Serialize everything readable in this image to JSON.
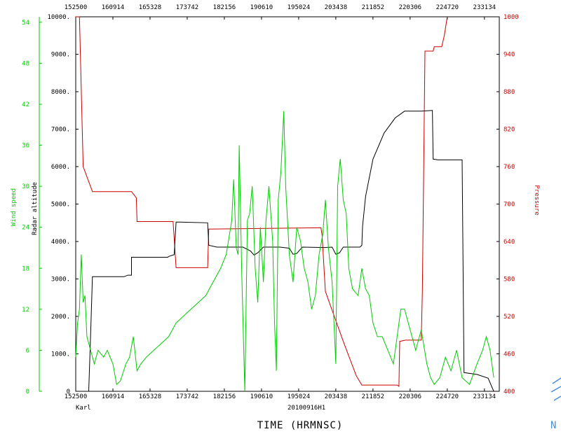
{
  "chart_data": {
    "type": "line",
    "xlabel": "TIME (HRMNSC)",
    "date_label": "20100916H1",
    "storm_name": "Karl",
    "x_ticks": [
      "152500",
      "160914",
      "165328",
      "173742",
      "182156",
      "190610",
      "195024",
      "203438",
      "211852",
      "220306",
      "224720",
      "233134"
    ],
    "axes": {
      "wind": {
        "label": "Wind speed",
        "ticks": [
          "0",
          "6",
          "12",
          "18",
          "24",
          "30",
          "36",
          "42",
          "48",
          "54"
        ],
        "ylim": [
          0,
          54.8
        ],
        "color": "#00cc00"
      },
      "altitude": {
        "label": "Radar altitude",
        "ticks": [
          "0",
          "1000.",
          "2000.",
          "3000.",
          "4000.",
          "5000.",
          "6000.",
          "7000.",
          "8000.",
          "9000.",
          "10000."
        ],
        "ylim": [
          0,
          10000
        ],
        "color": "#000000"
      },
      "pressure": {
        "label": "Pressure",
        "ticks": [
          "400",
          "460",
          "520",
          "580",
          "640",
          "700",
          "760",
          "820",
          "880",
          "940",
          "1000"
        ],
        "ylim": [
          400,
          1000
        ],
        "color": "#cc0000"
      }
    },
    "series": [
      {
        "axis": "pressure",
        "color": "#cc0000",
        "points": [
          [
            0,
            1005
          ],
          [
            0.01,
            1000
          ],
          [
            0.02,
            760
          ],
          [
            0.045,
            720
          ],
          [
            0.15,
            720
          ],
          [
            0.163,
            710
          ],
          [
            0.165,
            672
          ],
          [
            0.262,
            672
          ],
          [
            0.265,
            645
          ],
          [
            0.27,
            598
          ],
          [
            0.355,
            598
          ],
          [
            0.358,
            660
          ],
          [
            0.36,
            660
          ],
          [
            0.66,
            662
          ],
          [
            0.663,
            650
          ],
          [
            0.672,
            560
          ],
          [
            0.72,
            480
          ],
          [
            0.755,
            425
          ],
          [
            0.77,
            410
          ],
          [
            0.8,
            410
          ],
          [
            0.85,
            410
          ],
          [
            0.865,
            410
          ],
          [
            0.87,
            408
          ],
          [
            0.872,
            480
          ],
          [
            0.888,
            482
          ],
          [
            0.93,
            482
          ],
          [
            0.933,
            560
          ],
          [
            0.94,
            945
          ],
          [
            0.962,
            945
          ],
          [
            0.965,
            952
          ],
          [
            0.985,
            952
          ],
          [
            0.992,
            970
          ],
          [
            1.0,
            1000
          ]
        ]
      },
      {
        "axis": "altitude",
        "color": "#000000",
        "points": [
          [
            0.02,
            0
          ],
          [
            0.035,
            0
          ],
          [
            0.04,
            1500
          ],
          [
            0.045,
            3060
          ],
          [
            0.06,
            3060
          ],
          [
            0.13,
            3060
          ],
          [
            0.14,
            3100
          ],
          [
            0.15,
            3100
          ],
          [
            0.15,
            3580
          ],
          [
            0.24,
            3580
          ],
          [
            0.248,
            3580
          ],
          [
            0.25,
            3600
          ],
          [
            0.265,
            3650
          ],
          [
            0.27,
            4520
          ],
          [
            0.28,
            4520
          ],
          [
            0.355,
            4500
          ],
          [
            0.358,
            3900
          ],
          [
            0.38,
            3850
          ],
          [
            0.45,
            3850
          ],
          [
            0.47,
            3750
          ],
          [
            0.48,
            3640
          ],
          [
            0.49,
            3700
          ],
          [
            0.505,
            3850
          ],
          [
            0.55,
            3850
          ],
          [
            0.575,
            3820
          ],
          [
            0.585,
            3660
          ],
          [
            0.595,
            3680
          ],
          [
            0.61,
            3850
          ],
          [
            0.67,
            3840
          ],
          [
            0.69,
            3850
          ],
          [
            0.7,
            3660
          ],
          [
            0.71,
            3700
          ],
          [
            0.72,
            3850
          ],
          [
            0.765,
            3850
          ],
          [
            0.77,
            3900
          ],
          [
            0.772,
            4400
          ],
          [
            0.78,
            5200
          ],
          [
            0.8,
            6200
          ],
          [
            0.83,
            6900
          ],
          [
            0.86,
            7300
          ],
          [
            0.885,
            7480
          ],
          [
            0.93,
            7480
          ],
          [
            0.96,
            7500
          ],
          [
            0.962,
            6200
          ],
          [
            0.975,
            6180
          ],
          [
            1.04,
            6180
          ],
          [
            1.045,
            500
          ],
          [
            1.08,
            450
          ],
          [
            1.11,
            350
          ],
          [
            1.125,
            0
          ]
        ]
      },
      {
        "axis": "wind",
        "color": "#00cc00",
        "points": [
          [
            0.0,
            5
          ],
          [
            0.005,
            10
          ],
          [
            0.01,
            12
          ],
          [
            0.015,
            20
          ],
          [
            0.02,
            13
          ],
          [
            0.025,
            14
          ],
          [
            0.03,
            8
          ],
          [
            0.04,
            6
          ],
          [
            0.05,
            4
          ],
          [
            0.06,
            6
          ],
          [
            0.075,
            5
          ],
          [
            0.085,
            6
          ],
          [
            0.1,
            4
          ],
          [
            0.11,
            1
          ],
          [
            0.12,
            1.5
          ],
          [
            0.135,
            4
          ],
          [
            0.145,
            5
          ],
          [
            0.155,
            8
          ],
          [
            0.165,
            3
          ],
          [
            0.175,
            4
          ],
          [
            0.19,
            5
          ],
          [
            0.21,
            6
          ],
          [
            0.23,
            7
          ],
          [
            0.25,
            8
          ],
          [
            0.27,
            10
          ],
          [
            0.29,
            11
          ],
          [
            0.31,
            12
          ],
          [
            0.33,
            13
          ],
          [
            0.35,
            14
          ],
          [
            0.37,
            16
          ],
          [
            0.39,
            18
          ],
          [
            0.405,
            20
          ],
          [
            0.42,
            25
          ],
          [
            0.425,
            31
          ],
          [
            0.432,
            21
          ],
          [
            0.437,
            20
          ],
          [
            0.44,
            36
          ],
          [
            0.447,
            17
          ],
          [
            0.455,
            0
          ],
          [
            0.462,
            25
          ],
          [
            0.468,
            26
          ],
          [
            0.475,
            30
          ],
          [
            0.483,
            18
          ],
          [
            0.49,
            13
          ],
          [
            0.497,
            24
          ],
          [
            0.505,
            16
          ],
          [
            0.512,
            25
          ],
          [
            0.52,
            30
          ],
          [
            0.53,
            22
          ],
          [
            0.535,
            10
          ],
          [
            0.54,
            3
          ],
          [
            0.545,
            28
          ],
          [
            0.552,
            32
          ],
          [
            0.56,
            41
          ],
          [
            0.565,
            30
          ],
          [
            0.575,
            20
          ],
          [
            0.585,
            16
          ],
          [
            0.595,
            24
          ],
          [
            0.605,
            22
          ],
          [
            0.615,
            18
          ],
          [
            0.625,
            16
          ],
          [
            0.635,
            12
          ],
          [
            0.645,
            14
          ],
          [
            0.655,
            20
          ],
          [
            0.665,
            23
          ],
          [
            0.672,
            28
          ],
          [
            0.68,
            21
          ],
          [
            0.69,
            16
          ],
          [
            0.7,
            4
          ],
          [
            0.705,
            30
          ],
          [
            0.712,
            34
          ],
          [
            0.72,
            28
          ],
          [
            0.728,
            26
          ],
          [
            0.735,
            18
          ],
          [
            0.745,
            15
          ],
          [
            0.76,
            14
          ],
          [
            0.77,
            18
          ],
          [
            0.78,
            15
          ],
          [
            0.79,
            14
          ],
          [
            0.8,
            10
          ],
          [
            0.812,
            8
          ],
          [
            0.825,
            8
          ],
          [
            0.84,
            6
          ],
          [
            0.855,
            4
          ],
          [
            0.865,
            8
          ],
          [
            0.875,
            12
          ],
          [
            0.885,
            12
          ],
          [
            0.895,
            10
          ],
          [
            0.905,
            8
          ],
          [
            0.915,
            6
          ],
          [
            0.93,
            9
          ],
          [
            0.945,
            4
          ],
          [
            0.955,
            2
          ],
          [
            0.965,
            1
          ],
          [
            0.98,
            2
          ],
          [
            0.995,
            5
          ],
          [
            1.01,
            3
          ],
          [
            1.025,
            6
          ],
          [
            1.04,
            2
          ],
          [
            1.06,
            1
          ],
          [
            1.08,
            4
          ],
          [
            1.095,
            6
          ],
          [
            1.105,
            8
          ],
          [
            1.115,
            6
          ],
          [
            1.125,
            2
          ]
        ]
      }
    ]
  }
}
